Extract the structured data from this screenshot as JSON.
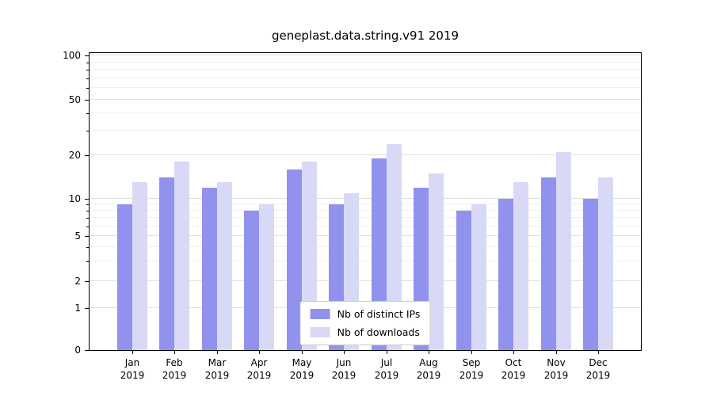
{
  "chart_data": {
    "type": "bar",
    "title": "geneplast.data.string.v91 2019",
    "categories": [
      "Jan",
      "Feb",
      "Mar",
      "Apr",
      "May",
      "Jun",
      "Jul",
      "Aug",
      "Sep",
      "Oct",
      "Nov",
      "Dec"
    ],
    "year": "2019",
    "series": [
      {
        "name": "Nb of distinct IPs",
        "color": "#9192ee",
        "values": [
          9,
          14,
          12,
          8,
          16,
          9,
          19,
          12,
          8,
          10,
          14,
          10
        ]
      },
      {
        "name": "Nb of downloads",
        "color": "#d8d9f7",
        "values": [
          13,
          18,
          13,
          9,
          18,
          11,
          24,
          15,
          9,
          13,
          21,
          14
        ]
      }
    ],
    "yticks": [
      0,
      1,
      2,
      5,
      10,
      20,
      50,
      100
    ],
    "ylim": [
      0,
      100
    ],
    "yscale": "log-like (symlog with 0 at baseline)",
    "xlabel": "",
    "ylabel": "",
    "grid": true,
    "legend_position": "lower center"
  }
}
